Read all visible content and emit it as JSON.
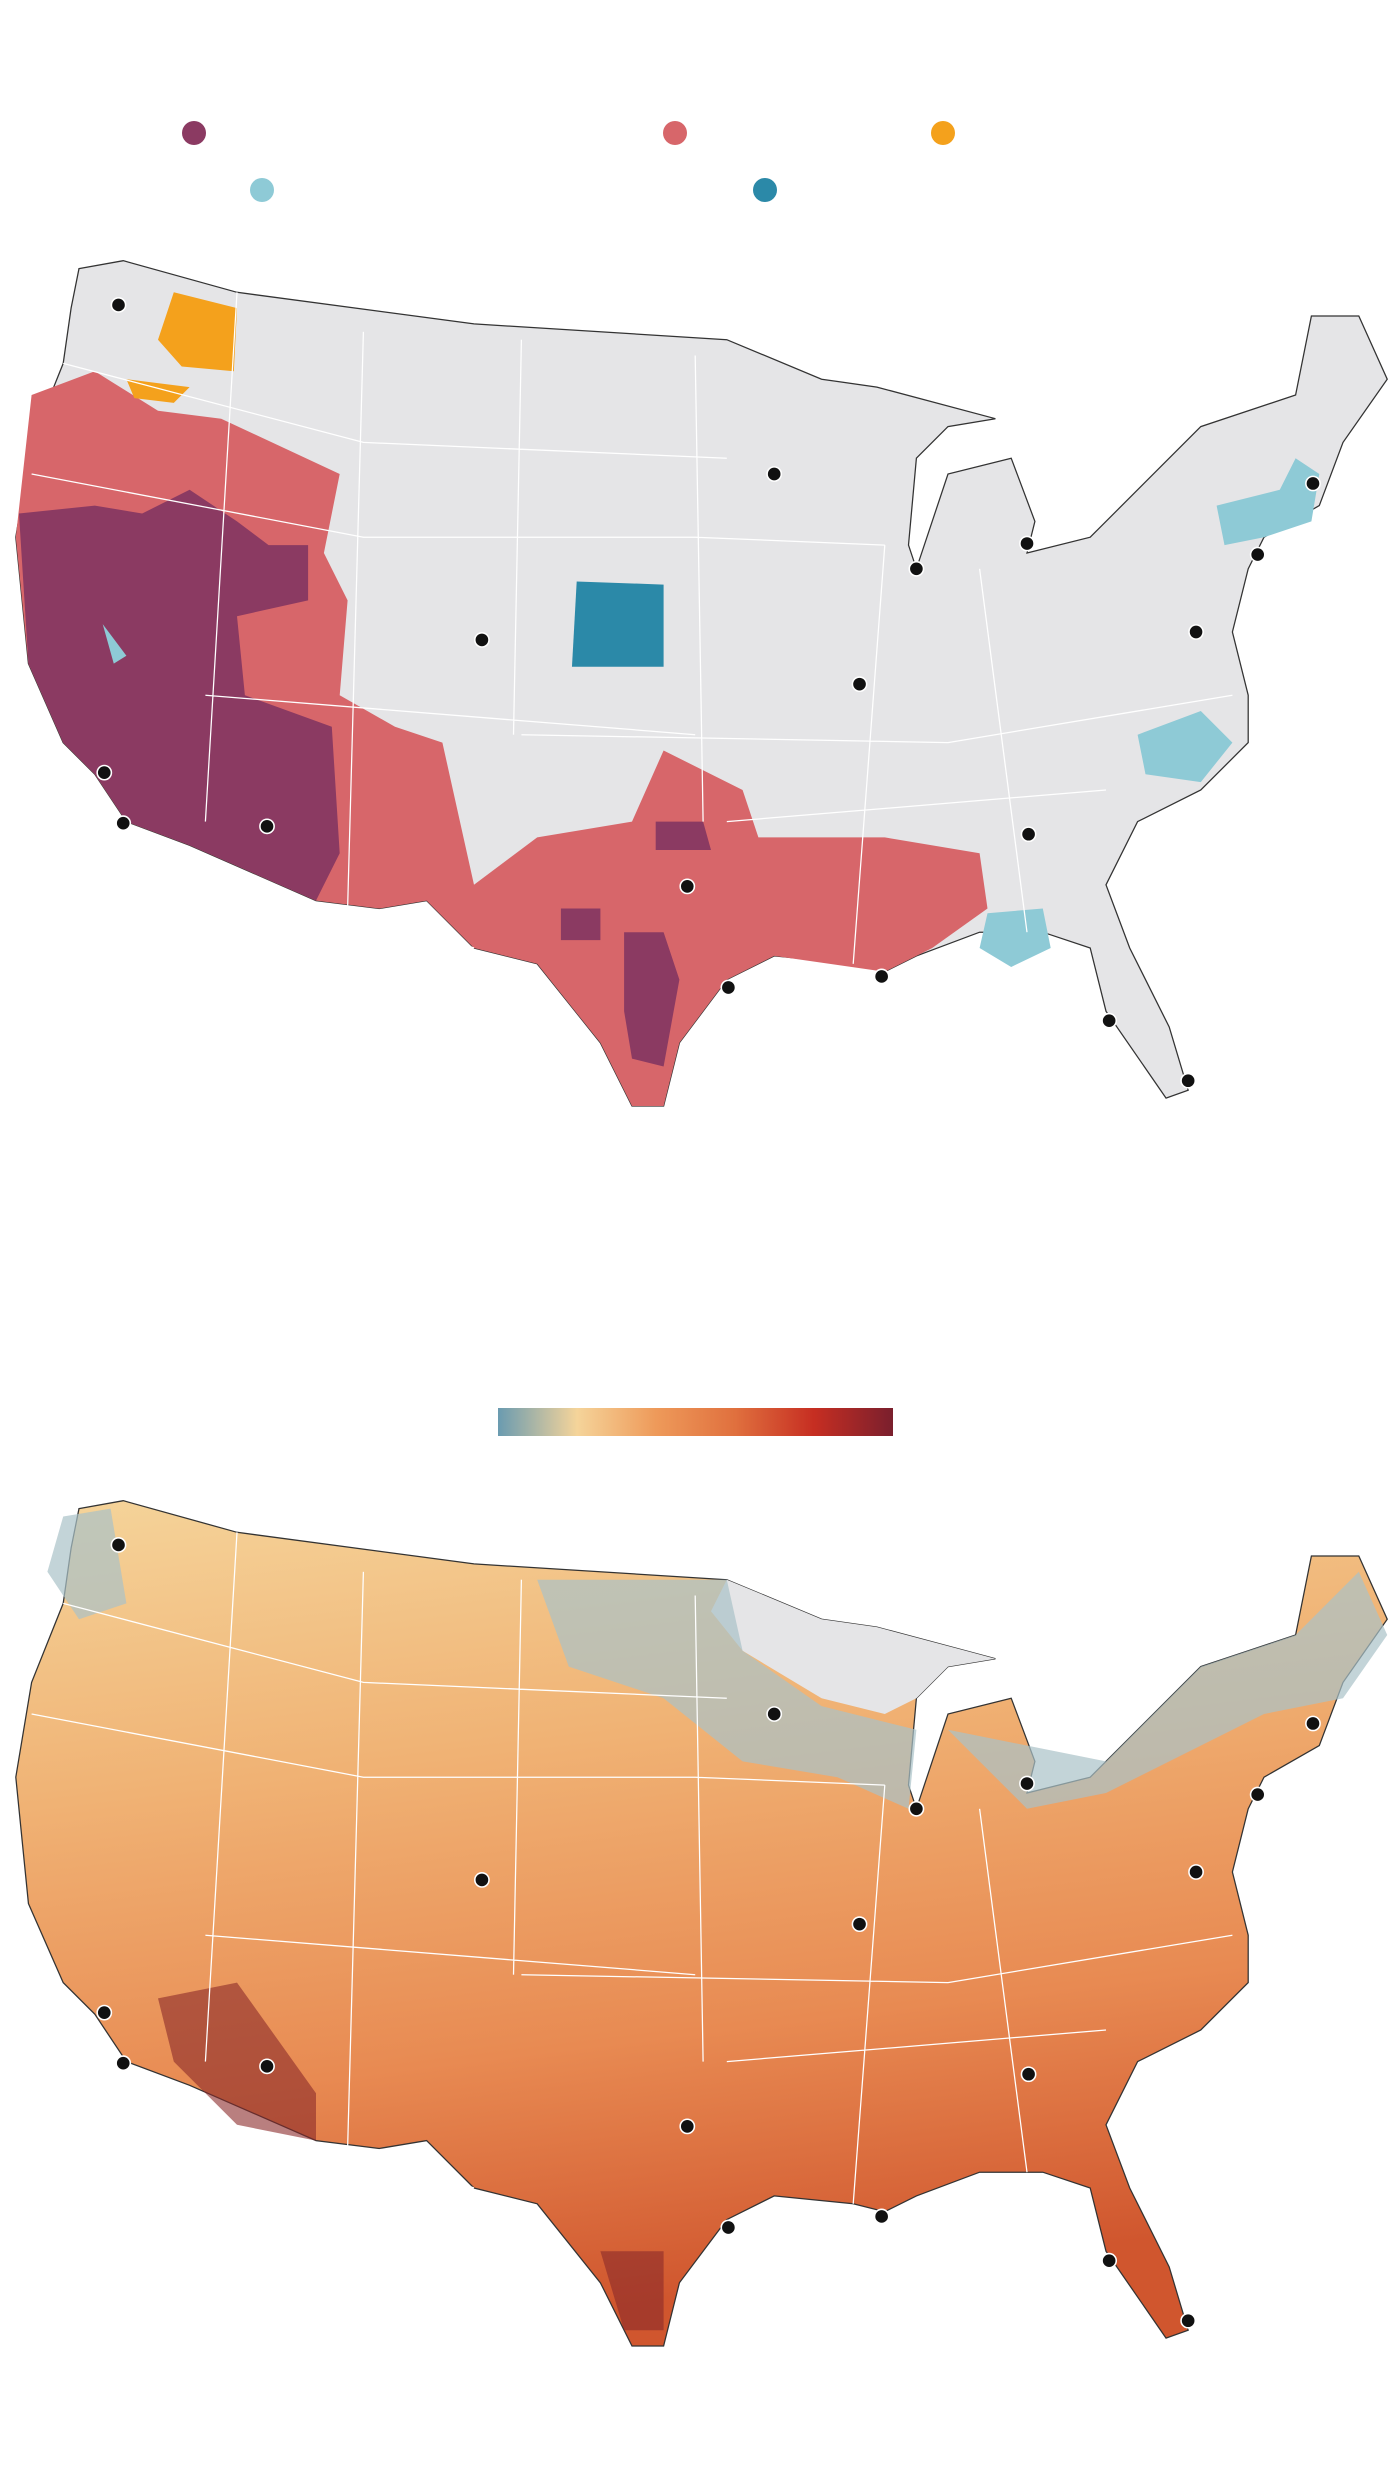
{
  "legend": {
    "items": [
      {
        "color": "#8b3a62"
      },
      {
        "color": "#d7666a"
      },
      {
        "color": "#f4a11c"
      },
      {
        "color": "#8ecad6"
      },
      {
        "color": "#2b89a8"
      }
    ]
  },
  "color_scale": {
    "colors": [
      "#6a9bb0",
      "#f5d49a",
      "#ee9a5a",
      "#e0703e",
      "#c62e22",
      "#7a1f2d"
    ]
  }
}
